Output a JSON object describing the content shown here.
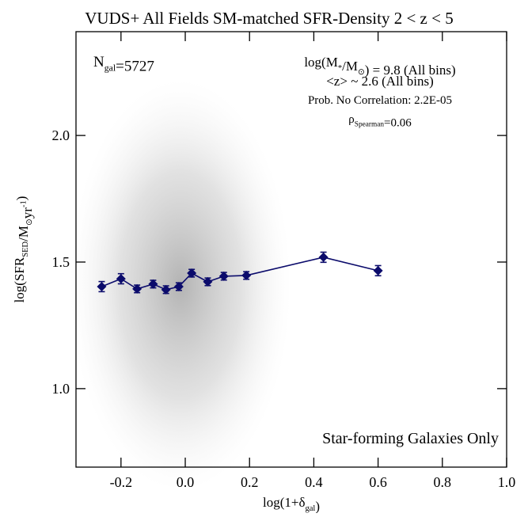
{
  "chart_data": {
    "type": "errorline",
    "title": "VUDS+ All Fields SM-matched SFR-Density 2 < z < 5",
    "x_label": [
      "log(1+δ",
      {
        "sub": "gal"
      },
      ")"
    ],
    "y_label": [
      "log(SFR",
      {
        "sub": "SED"
      },
      "/M",
      {
        "sub": "⊙"
      },
      "yr",
      {
        "sup": "-1"
      },
      ")"
    ],
    "annotations": [
      [
        "N",
        {
          "sub": "gal"
        },
        "=5727"
      ],
      [
        "log(M",
        {
          "sub": "*"
        },
        "/M",
        {
          "sub": "⊙"
        },
        ") = 9.8 (All bins)"
      ],
      [
        "<z> ~ 2.6 (All bins)"
      ],
      [
        "Prob. No Correlation: 2.2E-05"
      ],
      [
        "ρ",
        {
          "sub": "Spearman"
        },
        "=0.06"
      ],
      [
        "Star-forming Galaxies Only"
      ]
    ],
    "xlim": [
      -0.34,
      1.0
    ],
    "ylim": [
      0.69,
      2.41
    ],
    "xticks": [
      {
        "value": -0.2,
        "label": "-0.2"
      },
      {
        "value": 0,
        "label": "0.0"
      },
      0.2,
      0.4,
      0.6,
      0.8,
      {
        "value": 1,
        "label": "1.0"
      }
    ],
    "yticks": [
      {
        "value": 1,
        "label": "1.0"
      },
      1.5,
      {
        "value": 2,
        "label": "2.0"
      }
    ],
    "series": [
      {
        "color": "#0b0b6b",
        "x": [
          -0.26,
          -0.2,
          -0.15,
          -0.1,
          -0.06,
          -0.02,
          0.02,
          0.07,
          0.12,
          0.19,
          0.43,
          0.6
        ],
        "values": [
          1.403,
          1.434,
          1.394,
          1.413,
          1.391,
          1.403,
          1.456,
          1.422,
          1.444,
          1.447,
          1.519,
          1.466
        ],
        "errors": [
          0.02,
          0.02,
          0.015,
          0.015,
          0.015,
          0.015,
          0.015,
          0.015,
          0.015,
          0.015,
          0.02,
          0.02
        ]
      }
    ]
  }
}
